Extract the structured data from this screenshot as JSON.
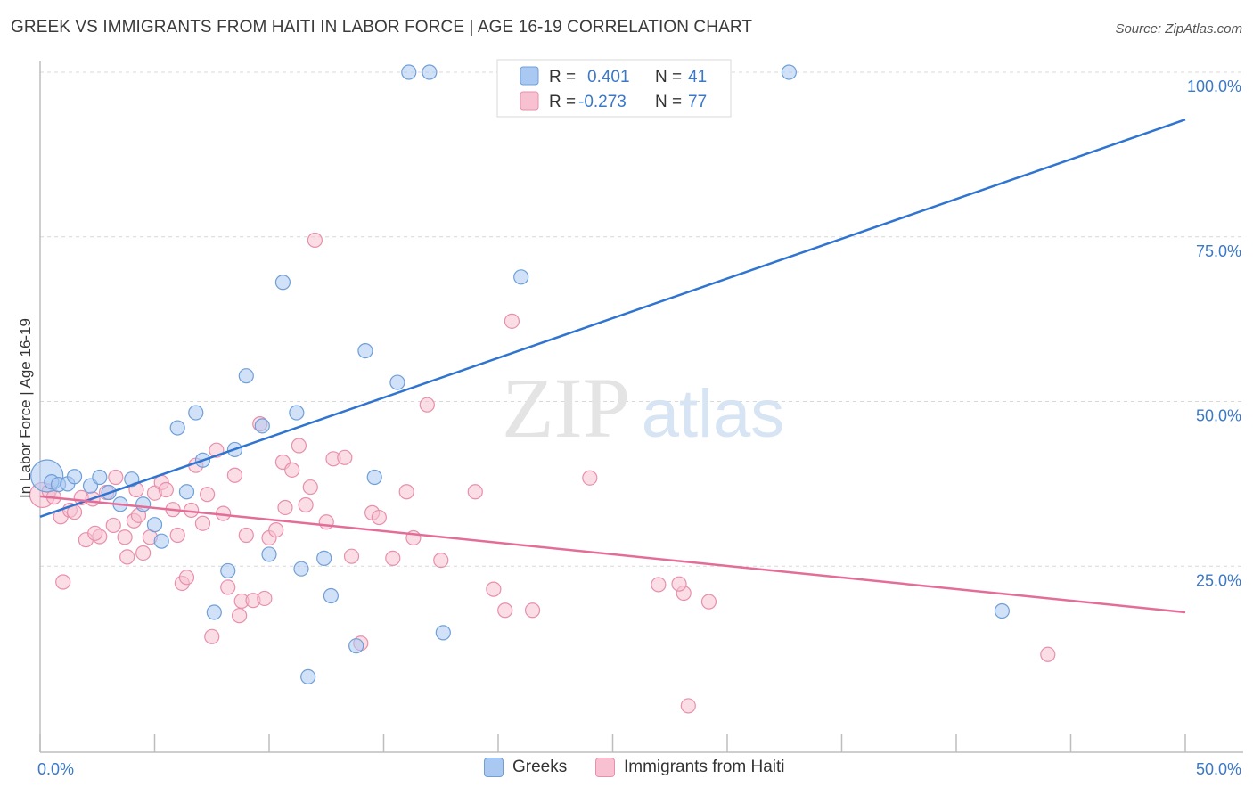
{
  "title": "GREEK VS IMMIGRANTS FROM HAITI IN LABOR FORCE | AGE 16-19 CORRELATION CHART",
  "source": "Source: ZipAtlas.com",
  "watermark": {
    "zip": "ZIP",
    "atlas": "atlas"
  },
  "colors": {
    "blue_fill": "#a9c8f2",
    "blue_stroke": "#6f9fd8",
    "blue_line": "#2f74d0",
    "pink_fill": "#f7c1d1",
    "pink_stroke": "#e88fab",
    "pink_line": "#e46d98",
    "axis_text_blue": "#3a78c8",
    "grid": "#d8d8d8"
  },
  "legend_box": {
    "rows": [
      {
        "r_label": "R =",
        "r_value": "0.401",
        "n_label": "N =",
        "n_value": "41"
      },
      {
        "r_label": "R =",
        "r_value": "-0.273",
        "n_label": "N =",
        "n_value": "77"
      }
    ]
  },
  "bottom_legend": {
    "greeks": "Greeks",
    "haiti": "Immigrants from Haiti"
  },
  "chart_data": {
    "type": "scatter",
    "xlabel": "",
    "ylabel": "In Labor Force | Age 16-19",
    "xlim": [
      0,
      50
    ],
    "ylim": [
      0,
      100
    ],
    "x_tick_labels": [
      "0.0%",
      "50.0%"
    ],
    "y_tick_labels": [
      "25.0%",
      "50.0%",
      "75.0%",
      "100.0%"
    ],
    "y_ticks": [
      25,
      50,
      75,
      100
    ],
    "legend_position": "top-center",
    "series": [
      {
        "name": "Greeks",
        "r": 0.401,
        "n": 41,
        "trend": {
          "x": [
            0,
            50
          ],
          "y": [
            32.5,
            92.8
          ]
        },
        "points": [
          {
            "x": 0.3,
            "y": 38.7,
            "big": true
          },
          {
            "x": 0.5,
            "y": 37.8
          },
          {
            "x": 0.8,
            "y": 37.4
          },
          {
            "x": 1.2,
            "y": 37.5
          },
          {
            "x": 1.5,
            "y": 38.6
          },
          {
            "x": 2.2,
            "y": 37.2
          },
          {
            "x": 2.6,
            "y": 38.5
          },
          {
            "x": 3.0,
            "y": 36.2
          },
          {
            "x": 3.5,
            "y": 34.4
          },
          {
            "x": 4.0,
            "y": 38.2
          },
          {
            "x": 4.5,
            "y": 34.4
          },
          {
            "x": 5.0,
            "y": 31.3
          },
          {
            "x": 5.3,
            "y": 28.8
          },
          {
            "x": 6.0,
            "y": 46.0
          },
          {
            "x": 6.4,
            "y": 36.3
          },
          {
            "x": 6.8,
            "y": 48.3
          },
          {
            "x": 7.1,
            "y": 41.1
          },
          {
            "x": 7.6,
            "y": 18.0
          },
          {
            "x": 8.2,
            "y": 24.3
          },
          {
            "x": 8.5,
            "y": 42.7
          },
          {
            "x": 9.0,
            "y": 53.9
          },
          {
            "x": 9.7,
            "y": 46.3
          },
          {
            "x": 10.0,
            "y": 26.8
          },
          {
            "x": 10.6,
            "y": 68.1
          },
          {
            "x": 11.2,
            "y": 48.3
          },
          {
            "x": 11.4,
            "y": 24.6
          },
          {
            "x": 11.7,
            "y": 8.2
          },
          {
            "x": 12.4,
            "y": 26.2
          },
          {
            "x": 12.7,
            "y": 20.5
          },
          {
            "x": 13.8,
            "y": 12.9
          },
          {
            "x": 14.2,
            "y": 57.7
          },
          {
            "x": 14.6,
            "y": 38.5
          },
          {
            "x": 15.6,
            "y": 52.9
          },
          {
            "x": 16.1,
            "y": 100.0
          },
          {
            "x": 17.0,
            "y": 100.0
          },
          {
            "x": 17.6,
            "y": 14.9
          },
          {
            "x": 21.0,
            "y": 68.9
          },
          {
            "x": 32.7,
            "y": 100.0
          },
          {
            "x": 42.0,
            "y": 18.2
          },
          {
            "x": 20.3,
            "y": 100.0
          },
          {
            "x": 22.3,
            "y": 100.0
          }
        ]
      },
      {
        "name": "Immigrants from Haiti",
        "r": -0.273,
        "n": 77,
        "trend": {
          "x": [
            0,
            50
          ],
          "y": [
            35.6,
            18.0
          ]
        },
        "points": [
          {
            "x": 0.1,
            "y": 35.8,
            "big": true
          },
          {
            "x": 0.4,
            "y": 36.4
          },
          {
            "x": 0.6,
            "y": 35.5
          },
          {
            "x": 0.9,
            "y": 32.5
          },
          {
            "x": 1.0,
            "y": 22.6
          },
          {
            "x": 1.3,
            "y": 33.5
          },
          {
            "x": 1.5,
            "y": 33.2
          },
          {
            "x": 1.8,
            "y": 35.4
          },
          {
            "x": 2.0,
            "y": 29.0
          },
          {
            "x": 2.3,
            "y": 35.2
          },
          {
            "x": 2.6,
            "y": 29.5
          },
          {
            "x": 2.9,
            "y": 36.2
          },
          {
            "x": 3.2,
            "y": 31.2
          },
          {
            "x": 3.3,
            "y": 38.5
          },
          {
            "x": 3.7,
            "y": 29.4
          },
          {
            "x": 3.8,
            "y": 26.4
          },
          {
            "x": 4.1,
            "y": 31.9
          },
          {
            "x": 4.3,
            "y": 32.7
          },
          {
            "x": 4.5,
            "y": 27.0
          },
          {
            "x": 4.8,
            "y": 29.4
          },
          {
            "x": 5.0,
            "y": 36.1
          },
          {
            "x": 5.3,
            "y": 37.7
          },
          {
            "x": 5.5,
            "y": 36.6
          },
          {
            "x": 5.8,
            "y": 33.6
          },
          {
            "x": 6.0,
            "y": 29.7
          },
          {
            "x": 6.2,
            "y": 22.4
          },
          {
            "x": 6.4,
            "y": 23.3
          },
          {
            "x": 6.6,
            "y": 33.5
          },
          {
            "x": 6.8,
            "y": 40.3
          },
          {
            "x": 7.1,
            "y": 31.5
          },
          {
            "x": 7.3,
            "y": 35.9
          },
          {
            "x": 7.5,
            "y": 14.3
          },
          {
            "x": 7.7,
            "y": 42.6
          },
          {
            "x": 8.0,
            "y": 33.0
          },
          {
            "x": 8.2,
            "y": 21.8
          },
          {
            "x": 8.5,
            "y": 38.8
          },
          {
            "x": 8.7,
            "y": 17.5
          },
          {
            "x": 8.8,
            "y": 19.7
          },
          {
            "x": 9.0,
            "y": 29.7
          },
          {
            "x": 9.3,
            "y": 19.8
          },
          {
            "x": 9.6,
            "y": 46.6
          },
          {
            "x": 9.8,
            "y": 20.1
          },
          {
            "x": 10.0,
            "y": 29.3
          },
          {
            "x": 10.3,
            "y": 30.5
          },
          {
            "x": 10.6,
            "y": 40.8
          },
          {
            "x": 10.7,
            "y": 33.9
          },
          {
            "x": 11.0,
            "y": 39.6
          },
          {
            "x": 11.3,
            "y": 43.3
          },
          {
            "x": 11.6,
            "y": 34.3
          },
          {
            "x": 11.8,
            "y": 37.0
          },
          {
            "x": 12.0,
            "y": 74.5
          },
          {
            "x": 12.5,
            "y": 31.7
          },
          {
            "x": 12.8,
            "y": 41.3
          },
          {
            "x": 13.3,
            "y": 41.5
          },
          {
            "x": 13.6,
            "y": 26.5
          },
          {
            "x": 14.0,
            "y": 13.3
          },
          {
            "x": 14.5,
            "y": 33.1
          },
          {
            "x": 14.8,
            "y": 32.4
          },
          {
            "x": 15.4,
            "y": 26.2
          },
          {
            "x": 16.0,
            "y": 36.3
          },
          {
            "x": 16.3,
            "y": 29.3
          },
          {
            "x": 16.9,
            "y": 49.5
          },
          {
            "x": 17.5,
            "y": 25.9
          },
          {
            "x": 19.0,
            "y": 36.3
          },
          {
            "x": 19.8,
            "y": 21.5
          },
          {
            "x": 20.3,
            "y": 18.3
          },
          {
            "x": 20.6,
            "y": 62.2
          },
          {
            "x": 21.5,
            "y": 18.3
          },
          {
            "x": 24.0,
            "y": 38.4
          },
          {
            "x": 27.0,
            "y": 22.2
          },
          {
            "x": 28.1,
            "y": 20.9
          },
          {
            "x": 28.3,
            "y": 3.8
          },
          {
            "x": 29.2,
            "y": 19.6
          },
          {
            "x": 44.0,
            "y": 11.6
          },
          {
            "x": 4.2,
            "y": 36.6
          },
          {
            "x": 2.4,
            "y": 30.0
          },
          {
            "x": 27.9,
            "y": 22.3
          }
        ]
      }
    ]
  }
}
